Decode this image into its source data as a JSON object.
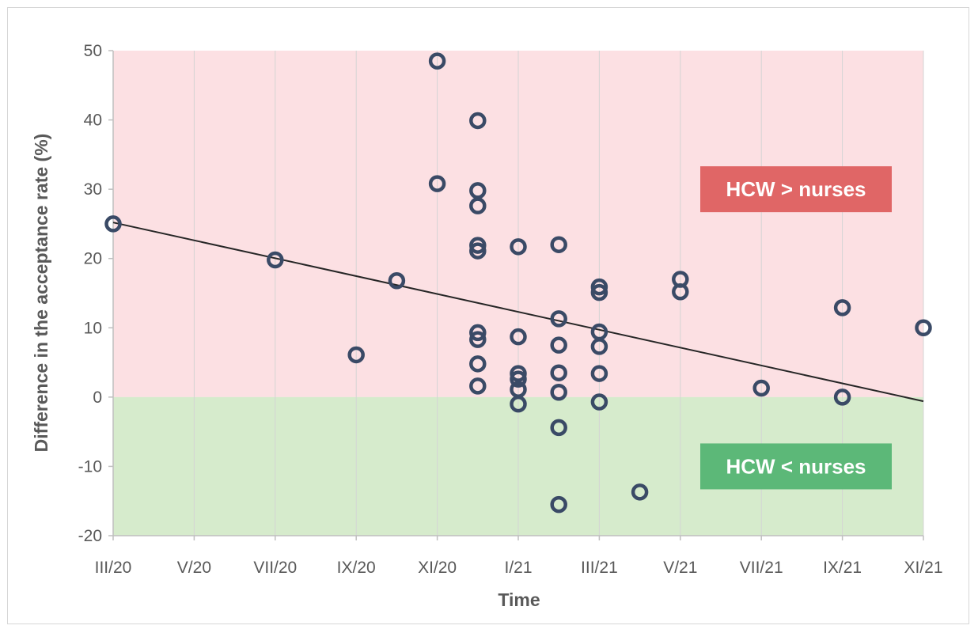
{
  "chart_data": {
    "type": "scatter",
    "xlabel": "Time",
    "ylabel": "Difference in the acceptance rate (%)",
    "x_ticks": [
      "III/20",
      "V/20",
      "VII/20",
      "IX/20",
      "XI/20",
      "I/21",
      "III/21",
      "V/21",
      "VII/21",
      "IX/21",
      "XI/21"
    ],
    "x_range": [
      "III/20",
      "XI/21"
    ],
    "ylim": [
      -20,
      50
    ],
    "y_ticks": [
      "50",
      "40",
      "30",
      "20",
      "10",
      "0",
      "-10",
      "-20"
    ],
    "grid": "vertical gridlines only",
    "regions": [
      {
        "label": "HCW > nurses",
        "y_from": 0,
        "y_to": 50,
        "color": "#fce0e3",
        "label_color": "#e06666"
      },
      {
        "label": "HCW < nurses",
        "y_from": -20,
        "y_to": 0,
        "color": "#d6ebcc",
        "label_color": "#5cb878"
      }
    ],
    "trendline": {
      "from": {
        "x": "III/20",
        "y": 25.2
      },
      "to": {
        "x": "XI/21",
        "y": -0.6
      },
      "color": "#262626"
    },
    "marker_color": "#3a4a66",
    "points": [
      {
        "x": "III/20",
        "y": 25
      },
      {
        "x": "VII/20",
        "y": 19.8
      },
      {
        "x": "IX/20",
        "y": 6.1
      },
      {
        "x": "X/20",
        "y": 16.8
      },
      {
        "x": "XI/20",
        "y": 48.5
      },
      {
        "x": "XI/20",
        "y": 30.8
      },
      {
        "x": "XII/20",
        "y": 39.9
      },
      {
        "x": "XII/20",
        "y": 29.8
      },
      {
        "x": "XII/20",
        "y": 27.6
      },
      {
        "x": "XII/20",
        "y": 21.9
      },
      {
        "x": "XII/20",
        "y": 21.1
      },
      {
        "x": "XII/20",
        "y": 9.3
      },
      {
        "x": "XII/20",
        "y": 8.3
      },
      {
        "x": "XII/20",
        "y": 4.8
      },
      {
        "x": "XII/20",
        "y": 1.6
      },
      {
        "x": "I/21",
        "y": 21.7
      },
      {
        "x": "I/21",
        "y": 8.7
      },
      {
        "x": "I/21",
        "y": 3.4
      },
      {
        "x": "I/21",
        "y": 2.6
      },
      {
        "x": "I/21",
        "y": 1.1
      },
      {
        "x": "I/21",
        "y": -1.0
      },
      {
        "x": "II/21",
        "y": 22.0
      },
      {
        "x": "II/21",
        "y": 11.3
      },
      {
        "x": "II/21",
        "y": 7.5
      },
      {
        "x": "II/21",
        "y": 3.5
      },
      {
        "x": "II/21",
        "y": 0.7
      },
      {
        "x": "II/21",
        "y": -4.4
      },
      {
        "x": "II/21",
        "y": -15.5
      },
      {
        "x": "III/21",
        "y": 15.9
      },
      {
        "x": "III/21",
        "y": 15.1
      },
      {
        "x": "III/21",
        "y": 9.4
      },
      {
        "x": "III/21",
        "y": 7.3
      },
      {
        "x": "III/21",
        "y": 3.4
      },
      {
        "x": "III/21",
        "y": -0.7
      },
      {
        "x": "IV/21",
        "y": -13.7
      },
      {
        "x": "V/21",
        "y": 17.0
      },
      {
        "x": "V/21",
        "y": 15.2
      },
      {
        "x": "VII/21",
        "y": 1.3
      },
      {
        "x": "IX/21",
        "y": 12.9
      },
      {
        "x": "IX/21",
        "y": 0.0
      },
      {
        "x": "XI/21",
        "y": 10.0
      }
    ]
  }
}
